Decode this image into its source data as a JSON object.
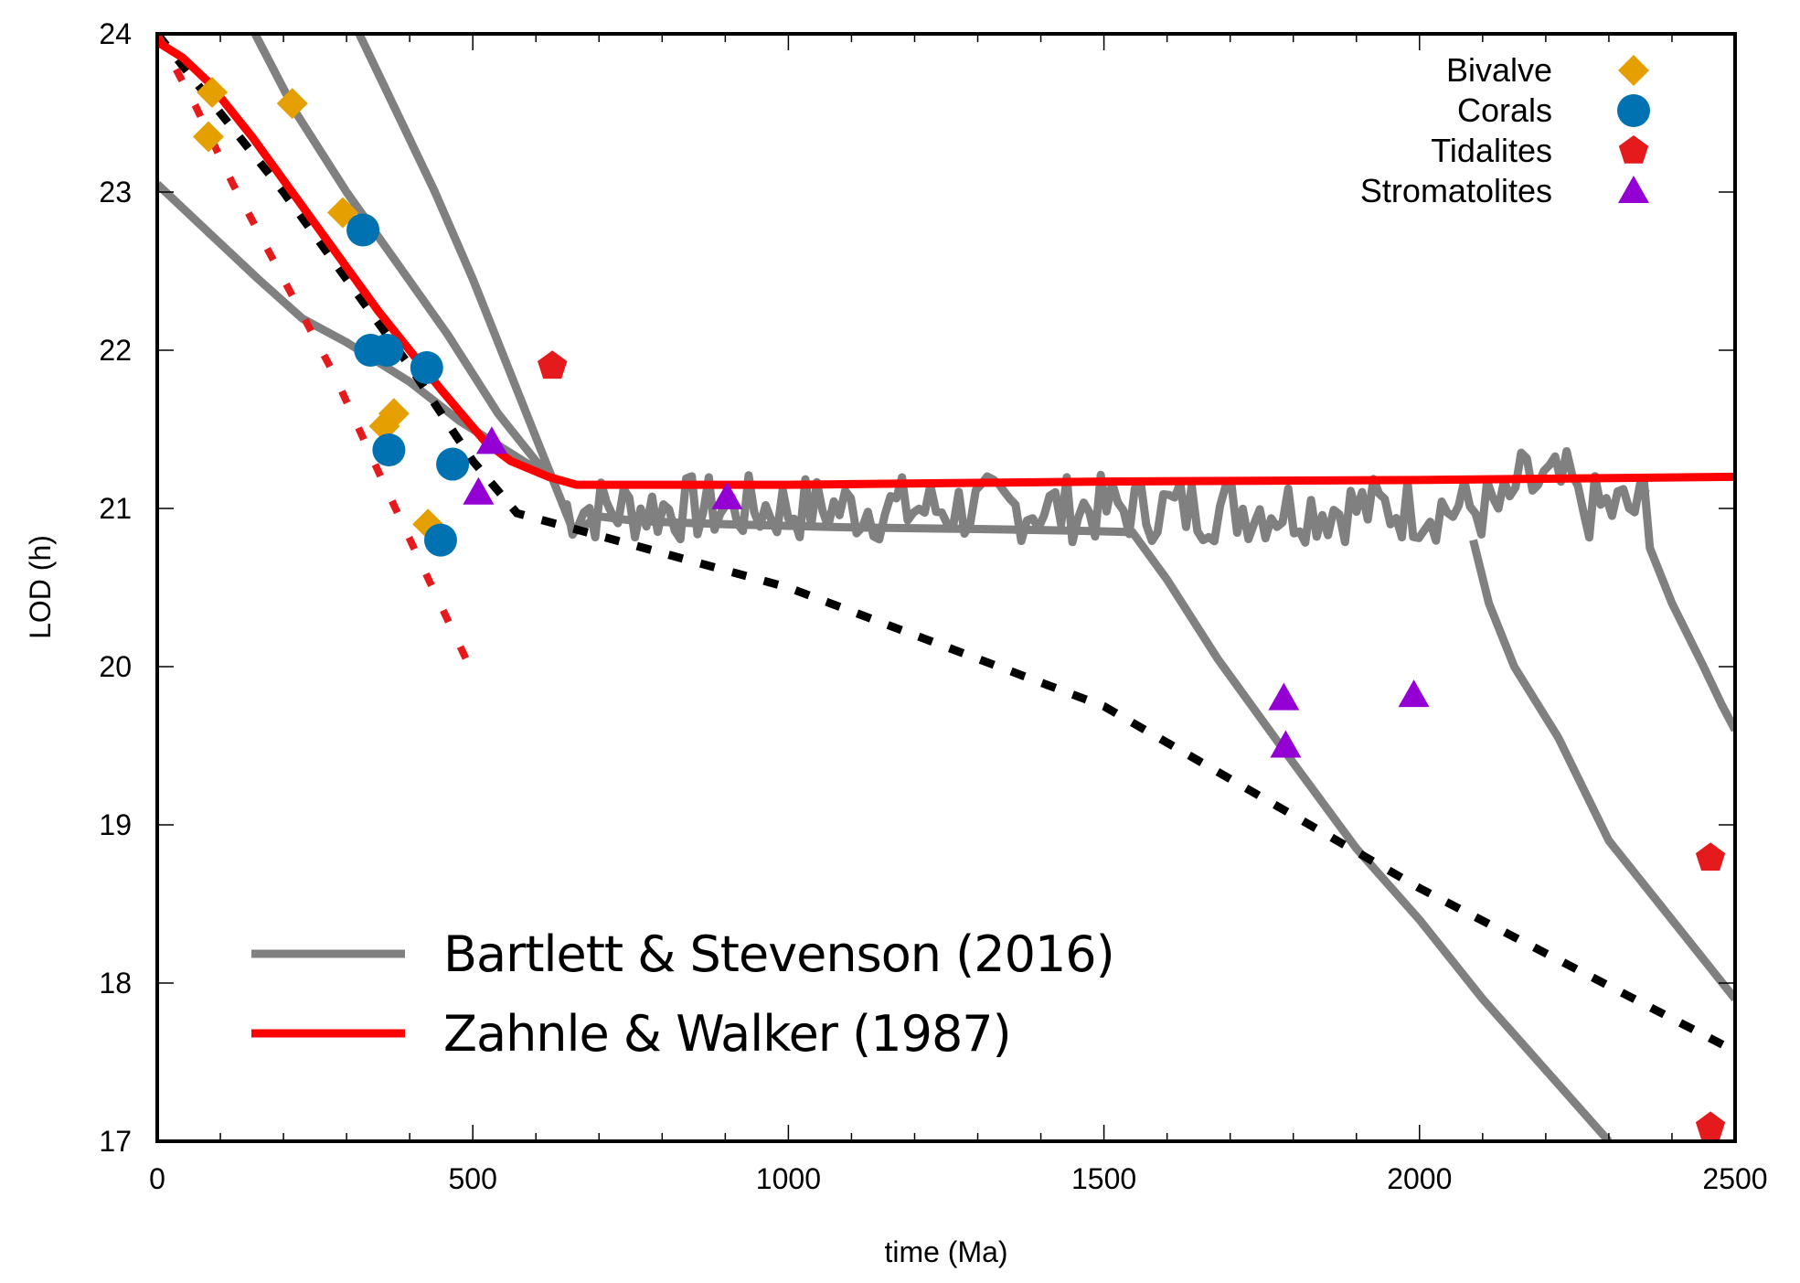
{
  "chart_data": {
    "type": "scatter",
    "title": "",
    "xlabel": "time (Ma)",
    "ylabel": "LOD (h)",
    "xlim": [
      0,
      2500
    ],
    "ylim": [
      17,
      24
    ],
    "grid": false,
    "x_ticks": [
      "0",
      "500",
      "1000",
      "1500",
      "2000",
      "2500"
    ],
    "y_ticks": [
      "17",
      "18",
      "19",
      "20",
      "21",
      "22",
      "23",
      "24"
    ],
    "x_tick_values": [
      0,
      500,
      1000,
      1500,
      2000,
      2500
    ],
    "y_tick_values": [
      17,
      18,
      19,
      20,
      21,
      22,
      23,
      24
    ],
    "x_minor_step": 100,
    "markers_legend_position": "top-right",
    "lines_legend_position": "bottom-left",
    "series": [
      {
        "name": "Bivalve",
        "kind": "points",
        "marker": "diamond",
        "color": "#e69f00",
        "points": [
          [
            87,
            23.63
          ],
          [
            214,
            23.56
          ],
          [
            81,
            23.35
          ],
          [
            294,
            22.87
          ],
          [
            375,
            21.6
          ],
          [
            360,
            21.52
          ],
          [
            429,
            20.9
          ]
        ]
      },
      {
        "name": "Corals",
        "kind": "points",
        "marker": "circle",
        "color": "#0072b2",
        "points": [
          [
            326,
            22.76
          ],
          [
            338,
            22.0
          ],
          [
            364,
            22.0
          ],
          [
            427,
            21.89
          ],
          [
            367,
            21.37
          ],
          [
            468,
            21.28
          ],
          [
            449,
            20.8
          ]
        ]
      },
      {
        "name": "Tidalites",
        "kind": "points",
        "marker": "pentagon",
        "color": "#e41a1c",
        "points": [
          [
            626,
            21.9
          ],
          [
            2461,
            18.79
          ],
          [
            2461,
            17.09
          ]
        ]
      },
      {
        "name": "Stromatolites",
        "kind": "points",
        "marker": "triangle",
        "color": "#9400d3",
        "points": [
          [
            530,
            21.42
          ],
          [
            509,
            21.1
          ],
          [
            903,
            21.07
          ],
          [
            1785,
            19.8
          ],
          [
            1788,
            19.5
          ],
          [
            1991,
            19.82
          ]
        ]
      },
      {
        "name": "Bartlett & Stevenson (2016)",
        "kind": "lines",
        "color": "#808080",
        "lines": [
          [
            [
              0,
              23.05
            ],
            [
              80,
              22.75
            ],
            [
              160,
              22.45
            ],
            [
              230,
              22.2
            ],
            [
              300,
              22.05
            ],
            [
              400,
              21.8
            ],
            [
              480,
              21.55
            ],
            [
              540,
              21.4
            ],
            [
              600,
              21.25
            ],
            [
              625,
              21.2
            ]
          ],
          [
            [
              155,
              24.0
            ],
            [
              220,
              23.5
            ],
            [
              300,
              23.0
            ],
            [
              380,
              22.55
            ],
            [
              460,
              22.1
            ],
            [
              540,
              21.6
            ],
            [
              600,
              21.3
            ],
            [
              625,
              21.2
            ]
          ],
          [
            [
              320,
              24.0
            ],
            [
              380,
              23.5
            ],
            [
              440,
              23.0
            ],
            [
              500,
              22.45
            ],
            [
              560,
              21.85
            ],
            [
              600,
              21.45
            ],
            [
              625,
              21.2
            ],
            [
              660,
              20.85
            ]
          ],
          [
            [
              660,
              20.85
            ],
            [
              700,
              20.95
            ],
            [
              760,
              20.92
            ],
            [
              900,
              20.9
            ],
            [
              1100,
              20.88
            ],
            [
              1300,
              20.87
            ],
            [
              1450,
              20.86
            ],
            [
              1545,
              20.85
            ],
            [
              1600,
              20.55
            ],
            [
              1680,
              20.05
            ],
            [
              1780,
              19.5
            ],
            [
              1900,
              18.85
            ],
            [
              2000,
              18.4
            ],
            [
              2100,
              17.9
            ],
            [
              2200,
              17.45
            ],
            [
              2300,
              17.0
            ]
          ],
          [
            [
              2085,
              20.8
            ],
            [
              2110,
              20.4
            ],
            [
              2150,
              20.0
            ],
            [
              2220,
              19.55
            ],
            [
              2300,
              18.9
            ],
            [
              2400,
              18.4
            ],
            [
              2500,
              17.9
            ]
          ],
          [
            [
              2355,
              21.2
            ],
            [
              2365,
              20.75
            ],
            [
              2400,
              20.4
            ],
            [
              2450,
              20.0
            ],
            [
              2480,
              19.75
            ],
            [
              2500,
              19.6
            ]
          ]
        ],
        "noisy_band": {
          "x_range": [
            640,
            2360
          ],
          "center": 21.0,
          "amplitude": 0.12,
          "seed": 7
        }
      },
      {
        "name": "Zahnle & Walker (1987)",
        "kind": "line",
        "color": "#ff0000",
        "points": [
          [
            0,
            23.95
          ],
          [
            40,
            23.85
          ],
          [
            80,
            23.7
          ],
          [
            150,
            23.35
          ],
          [
            250,
            22.8
          ],
          [
            350,
            22.25
          ],
          [
            450,
            21.75
          ],
          [
            520,
            21.42
          ],
          [
            560,
            21.3
          ],
          [
            620,
            21.2
          ],
          [
            664,
            21.15
          ],
          [
            1000,
            21.15
          ],
          [
            1500,
            21.17
          ],
          [
            2000,
            21.18
          ],
          [
            2500,
            21.2
          ]
        ]
      },
      {
        "name": "black dashed fit",
        "kind": "dashed-line",
        "color": "#000000",
        "points": [
          [
            0,
            24.0
          ],
          [
            100,
            23.5
          ],
          [
            200,
            23.0
          ],
          [
            300,
            22.45
          ],
          [
            400,
            21.9
          ],
          [
            500,
            21.3
          ],
          [
            570,
            20.97
          ],
          [
            1000,
            20.5
          ],
          [
            1500,
            19.75
          ],
          [
            2000,
            18.6
          ],
          [
            2500,
            17.57
          ]
        ]
      },
      {
        "name": "red dotted fit",
        "kind": "dotted-line",
        "color": "#e41a1c",
        "points": [
          [
            0,
            24.0
          ],
          [
            60,
            23.55
          ],
          [
            120,
            23.05
          ],
          [
            200,
            22.45
          ],
          [
            280,
            21.85
          ],
          [
            360,
            21.15
          ],
          [
            430,
            20.55
          ],
          [
            501,
            19.95
          ]
        ]
      }
    ],
    "legend_markers": [
      "Bivalve",
      "Corals",
      "Tidalites",
      "Stromatolites"
    ],
    "legend_lines": [
      "Bartlett & Stevenson (2016)",
      "Zahnle & Walker (1987)"
    ]
  }
}
